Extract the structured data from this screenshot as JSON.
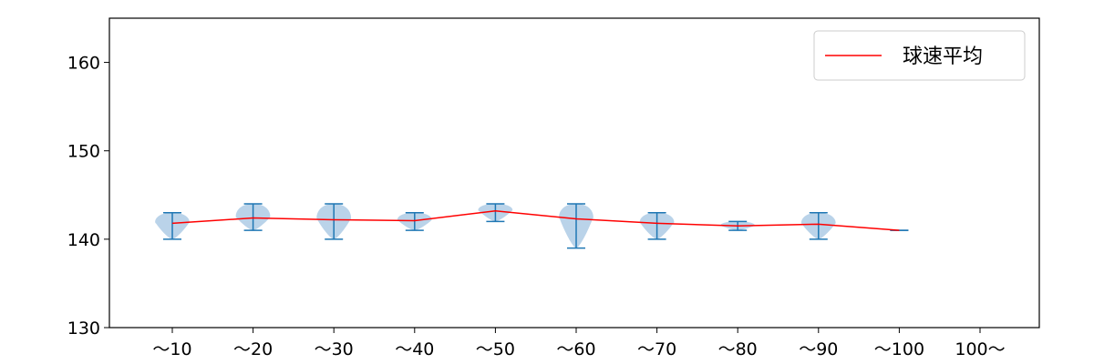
{
  "chart_data": {
    "type": "violin",
    "categories": [
      "～10",
      "～20",
      "～30",
      "～40",
      "～50",
      "～60",
      "～70",
      "～80",
      "～90",
      "～100",
      "100～"
    ],
    "ylim": [
      130,
      165
    ],
    "yticks": [
      130,
      140,
      150,
      160
    ],
    "series": [
      {
        "name": "球速平均",
        "color": "#ff0000",
        "values": [
          141.8,
          142.4,
          142.2,
          142.1,
          143.2,
          142.3,
          141.8,
          141.5,
          141.7,
          141.0,
          null
        ]
      }
    ],
    "distributions": [
      {
        "min": 140,
        "max": 143,
        "mean": 141.8
      },
      {
        "min": 141,
        "max": 144,
        "mean": 142.4
      },
      {
        "min": 140,
        "max": 144,
        "mean": 142.2
      },
      {
        "min": 141,
        "max": 143,
        "mean": 142.1
      },
      {
        "min": 142,
        "max": 144,
        "mean": 143.2
      },
      {
        "min": 139,
        "max": 144,
        "mean": 142.3
      },
      {
        "min": 140,
        "max": 143,
        "mean": 141.8
      },
      {
        "min": 141,
        "max": 142,
        "mean": 141.5
      },
      {
        "min": 140,
        "max": 143,
        "mean": 141.7
      },
      {
        "min": 141,
        "max": 141,
        "mean": 141.0
      },
      null
    ],
    "violin_color": "#a9c8e3",
    "whisker_color": "#1f77b4",
    "legend": {
      "position": "top-right",
      "label": "球速平均"
    },
    "grid": false,
    "title": "",
    "xlabel": "",
    "ylabel": ""
  }
}
